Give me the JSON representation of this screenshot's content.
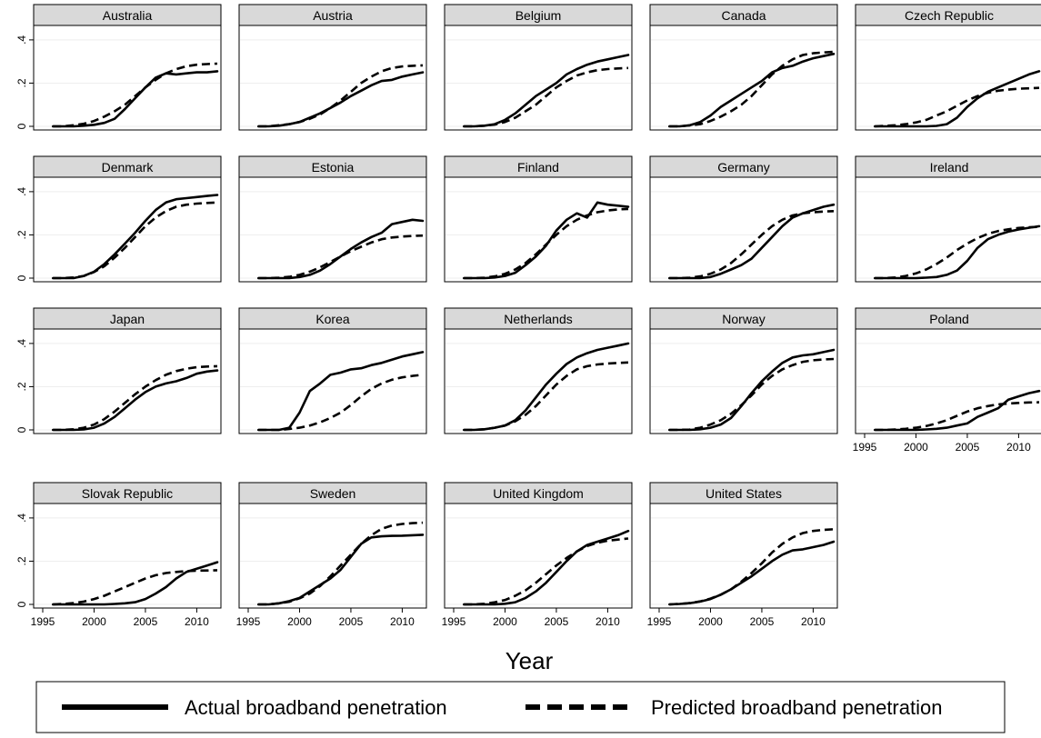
{
  "chart_data": {
    "type": "line",
    "layout": "small-multiples",
    "x": [
      1996,
      1997,
      1998,
      1999,
      2000,
      2001,
      2002,
      2003,
      2004,
      2005,
      2006,
      2007,
      2008,
      2009,
      2010,
      2011,
      2012
    ],
    "xlim": [
      1995,
      2012
    ],
    "ylim": [
      0,
      0.45
    ],
    "x_ticks": [
      1995,
      2000,
      2005,
      2010
    ],
    "x_tick_labels": [
      "1995",
      "2000",
      "2005",
      "2010"
    ],
    "y_ticks": [
      0,
      0.2,
      0.4
    ],
    "y_tick_labels": [
      "0",
      ".2",
      ".4"
    ],
    "xlabel": "Year",
    "ylabel": "",
    "grid": true,
    "legend": {
      "position": "bottom",
      "actual_label": "Actual broadband penetration",
      "predicted_label": "Predicted broadband penetration"
    },
    "panels": [
      {
        "title": "Australia",
        "actual": [
          0,
          0,
          0,
          0.003,
          0.007,
          0.016,
          0.035,
          0.08,
          0.13,
          0.18,
          0.225,
          0.245,
          0.24,
          0.245,
          0.25,
          0.25,
          0.255
        ],
        "predicted": [
          0,
          0,
          0.005,
          0.012,
          0.025,
          0.045,
          0.07,
          0.1,
          0.14,
          0.18,
          0.215,
          0.245,
          0.265,
          0.278,
          0.285,
          0.288,
          0.29
        ]
      },
      {
        "title": "Austria",
        "actual": [
          0,
          0,
          0.003,
          0.01,
          0.02,
          0.04,
          0.06,
          0.085,
          0.11,
          0.14,
          0.165,
          0.19,
          0.21,
          0.215,
          0.23,
          0.24,
          0.25
        ],
        "predicted": [
          0,
          0,
          0.005,
          0.01,
          0.02,
          0.035,
          0.055,
          0.085,
          0.12,
          0.16,
          0.2,
          0.23,
          0.255,
          0.27,
          0.277,
          0.28,
          0.282
        ]
      },
      {
        "title": "Belgium",
        "actual": [
          0,
          0,
          0.003,
          0.01,
          0.03,
          0.06,
          0.1,
          0.14,
          0.17,
          0.2,
          0.24,
          0.265,
          0.285,
          0.3,
          0.31,
          0.32,
          0.33
        ],
        "predicted": [
          0,
          0,
          0.003,
          0.008,
          0.02,
          0.04,
          0.07,
          0.1,
          0.14,
          0.18,
          0.21,
          0.235,
          0.25,
          0.26,
          0.265,
          0.268,
          0.27
        ]
      },
      {
        "title": "Canada",
        "actual": [
          0,
          0,
          0.005,
          0.02,
          0.05,
          0.09,
          0.12,
          0.15,
          0.18,
          0.21,
          0.25,
          0.27,
          0.28,
          0.3,
          0.315,
          0.325,
          0.335
        ],
        "predicted": [
          0,
          0,
          0.004,
          0.01,
          0.025,
          0.045,
          0.07,
          0.1,
          0.14,
          0.19,
          0.24,
          0.28,
          0.31,
          0.33,
          0.338,
          0.342,
          0.345
        ]
      },
      {
        "title": "Czech Republic",
        "actual": [
          0,
          0,
          0,
          0,
          0,
          0,
          0.002,
          0.01,
          0.04,
          0.09,
          0.13,
          0.16,
          0.18,
          0.2,
          0.22,
          0.24,
          0.255
        ],
        "predicted": [
          0,
          0.002,
          0.005,
          0.01,
          0.018,
          0.03,
          0.05,
          0.07,
          0.095,
          0.12,
          0.14,
          0.155,
          0.165,
          0.17,
          0.174,
          0.176,
          0.178
        ]
      },
      {
        "title": "Denmark",
        "actual": [
          0,
          0,
          0,
          0.01,
          0.03,
          0.065,
          0.11,
          0.16,
          0.21,
          0.265,
          0.315,
          0.35,
          0.365,
          0.37,
          0.375,
          0.38,
          0.385
        ],
        "predicted": [
          0,
          0,
          0.003,
          0.01,
          0.028,
          0.055,
          0.095,
          0.14,
          0.19,
          0.24,
          0.28,
          0.31,
          0.33,
          0.34,
          0.345,
          0.348,
          0.35
        ]
      },
      {
        "title": "Estonia",
        "actual": [
          0,
          0,
          0,
          0,
          0.005,
          0.015,
          0.035,
          0.065,
          0.1,
          0.135,
          0.165,
          0.19,
          0.21,
          0.25,
          0.26,
          0.27,
          0.265
        ],
        "predicted": [
          0,
          0,
          0.002,
          0.006,
          0.015,
          0.03,
          0.05,
          0.075,
          0.1,
          0.125,
          0.145,
          0.165,
          0.18,
          0.188,
          0.192,
          0.195,
          0.197
        ]
      },
      {
        "title": "Finland",
        "actual": [
          0,
          0,
          0,
          0.003,
          0.01,
          0.025,
          0.06,
          0.1,
          0.15,
          0.22,
          0.27,
          0.3,
          0.28,
          0.35,
          0.34,
          0.335,
          0.33
        ],
        "predicted": [
          0,
          0,
          0.002,
          0.008,
          0.02,
          0.04,
          0.07,
          0.11,
          0.155,
          0.2,
          0.24,
          0.27,
          0.29,
          0.305,
          0.313,
          0.318,
          0.32
        ]
      },
      {
        "title": "Germany",
        "actual": [
          0,
          0,
          0,
          0,
          0.005,
          0.02,
          0.04,
          0.06,
          0.09,
          0.14,
          0.19,
          0.24,
          0.28,
          0.3,
          0.315,
          0.33,
          0.34
        ],
        "predicted": [
          0,
          0,
          0.002,
          0.008,
          0.02,
          0.04,
          0.07,
          0.11,
          0.155,
          0.2,
          0.24,
          0.27,
          0.29,
          0.3,
          0.305,
          0.308,
          0.31
        ]
      },
      {
        "title": "Ireland",
        "actual": [
          0,
          0,
          0,
          0,
          0,
          0.002,
          0.005,
          0.015,
          0.035,
          0.08,
          0.14,
          0.18,
          0.2,
          0.215,
          0.225,
          0.233,
          0.24
        ],
        "predicted": [
          0,
          0,
          0.003,
          0.01,
          0.022,
          0.04,
          0.065,
          0.095,
          0.13,
          0.16,
          0.185,
          0.205,
          0.218,
          0.226,
          0.232,
          0.235,
          0.237
        ]
      },
      {
        "title": "Japan",
        "actual": [
          0,
          0,
          0,
          0.002,
          0.01,
          0.03,
          0.06,
          0.1,
          0.14,
          0.175,
          0.2,
          0.215,
          0.225,
          0.24,
          0.26,
          0.27,
          0.275
        ],
        "predicted": [
          0,
          0,
          0.003,
          0.01,
          0.025,
          0.05,
          0.085,
          0.125,
          0.165,
          0.2,
          0.23,
          0.255,
          0.272,
          0.283,
          0.29,
          0.293,
          0.295
        ]
      },
      {
        "title": "Korea",
        "actual": [
          0,
          0,
          0,
          0.01,
          0.08,
          0.18,
          0.215,
          0.255,
          0.265,
          0.28,
          0.285,
          0.3,
          0.31,
          0.325,
          0.34,
          0.35,
          0.36
        ],
        "predicted": [
          0,
          0,
          0,
          0.004,
          0.01,
          0.02,
          0.035,
          0.055,
          0.08,
          0.115,
          0.155,
          0.19,
          0.215,
          0.232,
          0.243,
          0.25,
          0.255
        ]
      },
      {
        "title": "Netherlands",
        "actual": [
          0,
          0,
          0.003,
          0.01,
          0.02,
          0.045,
          0.09,
          0.15,
          0.21,
          0.26,
          0.305,
          0.335,
          0.355,
          0.37,
          0.38,
          0.39,
          0.4
        ],
        "predicted": [
          0,
          0,
          0.003,
          0.01,
          0.02,
          0.04,
          0.07,
          0.11,
          0.16,
          0.21,
          0.25,
          0.28,
          0.295,
          0.303,
          0.307,
          0.31,
          0.312
        ]
      },
      {
        "title": "Norway",
        "actual": [
          0,
          0,
          0,
          0.003,
          0.01,
          0.025,
          0.055,
          0.11,
          0.17,
          0.225,
          0.27,
          0.31,
          0.335,
          0.345,
          0.35,
          0.36,
          0.37
        ],
        "predicted": [
          0,
          0,
          0.003,
          0.01,
          0.025,
          0.045,
          0.075,
          0.115,
          0.16,
          0.21,
          0.25,
          0.28,
          0.3,
          0.315,
          0.322,
          0.326,
          0.328
        ]
      },
      {
        "title": "Poland",
        "actual": [
          0,
          0,
          0,
          0,
          0,
          0.002,
          0.005,
          0.01,
          0.02,
          0.03,
          0.06,
          0.08,
          0.1,
          0.14,
          0.155,
          0.17,
          0.18
        ],
        "predicted": [
          0,
          0,
          0.002,
          0.005,
          0.01,
          0.018,
          0.03,
          0.045,
          0.065,
          0.085,
          0.1,
          0.11,
          0.118,
          0.122,
          0.125,
          0.127,
          0.128
        ]
      },
      {
        "title": "Slovak Republic",
        "actual": [
          0,
          0,
          0,
          0,
          0,
          0,
          0.002,
          0.005,
          0.01,
          0.025,
          0.05,
          0.08,
          0.12,
          0.15,
          0.165,
          0.18,
          0.195
        ],
        "predicted": [
          0,
          0.002,
          0.006,
          0.013,
          0.025,
          0.04,
          0.06,
          0.08,
          0.1,
          0.12,
          0.135,
          0.145,
          0.15,
          0.154,
          0.156,
          0.157,
          0.158
        ]
      },
      {
        "title": "Sweden",
        "actual": [
          0,
          0,
          0.005,
          0.015,
          0.03,
          0.06,
          0.09,
          0.12,
          0.16,
          0.22,
          0.28,
          0.31,
          0.315,
          0.317,
          0.318,
          0.32,
          0.322
        ],
        "predicted": [
          0,
          0,
          0.005,
          0.012,
          0.028,
          0.05,
          0.085,
          0.13,
          0.18,
          0.23,
          0.28,
          0.32,
          0.35,
          0.365,
          0.372,
          0.376,
          0.378
        ]
      },
      {
        "title": "United Kingdom",
        "actual": [
          0,
          0,
          0,
          0,
          0.003,
          0.01,
          0.03,
          0.06,
          0.1,
          0.15,
          0.2,
          0.245,
          0.275,
          0.29,
          0.305,
          0.32,
          0.34
        ],
        "predicted": [
          0,
          0,
          0.003,
          0.01,
          0.02,
          0.04,
          0.065,
          0.1,
          0.14,
          0.18,
          0.215,
          0.245,
          0.27,
          0.285,
          0.295,
          0.3,
          0.305
        ]
      },
      {
        "title": "United States",
        "actual": [
          0,
          0.002,
          0.006,
          0.013,
          0.025,
          0.045,
          0.07,
          0.1,
          0.13,
          0.165,
          0.2,
          0.23,
          0.25,
          0.255,
          0.265,
          0.275,
          0.29
        ],
        "predicted": [
          0,
          0.002,
          0.006,
          0.014,
          0.027,
          0.045,
          0.07,
          0.105,
          0.145,
          0.19,
          0.24,
          0.28,
          0.31,
          0.33,
          0.34,
          0.345,
          0.348
        ]
      }
    ]
  }
}
